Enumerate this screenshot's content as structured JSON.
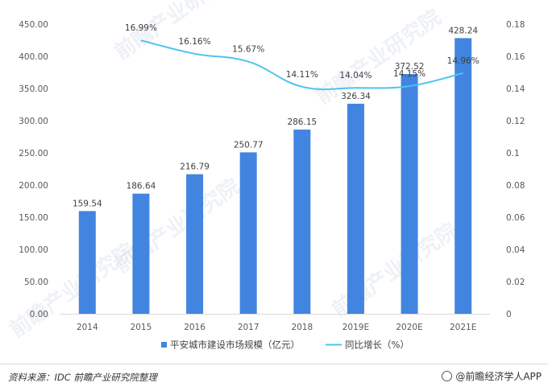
{
  "chart_data": {
    "type": "bar+line",
    "categories": [
      "2014",
      "2015",
      "2016",
      "2017",
      "2018",
      "2019E",
      "2020E",
      "2021E"
    ],
    "series": [
      {
        "name": "平安城市建设市场规模（亿元）",
        "type": "bar",
        "axis": "left",
        "color": "#4285e0",
        "values": [
          159.54,
          186.64,
          216.79,
          250.77,
          286.15,
          326.34,
          372.52,
          428.24
        ],
        "labels": [
          "159.54",
          "186.64",
          "216.79",
          "250.77",
          "286.15",
          "326.34",
          "372.52",
          "428.24"
        ]
      },
      {
        "name": "同比增长（%）",
        "type": "line",
        "axis": "right",
        "color": "#4cc3f0",
        "values": [
          null,
          0.1699,
          0.1616,
          0.1567,
          0.1411,
          0.1404,
          0.1415,
          0.1496
        ],
        "labels": [
          "",
          "16.99%",
          "16.16%",
          "15.67%",
          "14.11%",
          "14.04%",
          "14.15%",
          "14.96%"
        ]
      }
    ],
    "left_axis": {
      "ylim": [
        0,
        450
      ],
      "ticks": [
        "0.00",
        "50.00",
        "100.00",
        "150.00",
        "200.00",
        "250.00",
        "300.00",
        "350.00",
        "400.00",
        "450.00"
      ]
    },
    "right_axis": {
      "ylim": [
        0,
        0.18
      ],
      "ticks": [
        "0",
        "0.02",
        "0.04",
        "0.06",
        "0.08",
        "0.1",
        "0.12",
        "0.14",
        "0.16",
        "0.18"
      ]
    },
    "grid": false,
    "legend_position": "bottom"
  },
  "watermark": "前瞻产业研究院",
  "footer": {
    "source": "资料来源：IDC 前瞻产业研究院整理",
    "brand": "@前瞻经济学人APP"
  }
}
